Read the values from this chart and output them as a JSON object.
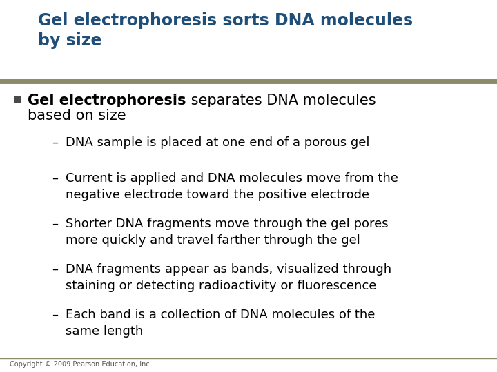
{
  "title_line1": "Gel electrophoresis sorts DNA molecules",
  "title_line2": "by size",
  "title_color": "#1F4E79",
  "title_fontsize": 17,
  "bg_color": "#FFFFFF",
  "header_rule_color": "#8B8B6B",
  "footer_rule_color": "#8B8B6B",
  "bullet_square_color": "#4A4A4A",
  "bullet_text_bold": "Gel electrophoresis",
  "bullet_fontsize": 15,
  "sub_bullet_fontsize": 13,
  "sub_bullets": [
    "DNA sample is placed at one end of a porous gel",
    "Current is applied and DNA molecules move from the\nnegative electrode toward the positive electrode",
    "Shorter DNA fragments move through the gel pores\nmore quickly and travel farther through the gel",
    "DNA fragments appear as bands, visualized through\nstaining or detecting radioactivity or fluorescence",
    "Each band is a collection of DNA molecules of the\nsame length"
  ],
  "footer_text": "Copyright © 2009 Pearson Education, Inc.",
  "footer_fontsize": 7,
  "text_color": "#000000",
  "dash_color": "#000000"
}
